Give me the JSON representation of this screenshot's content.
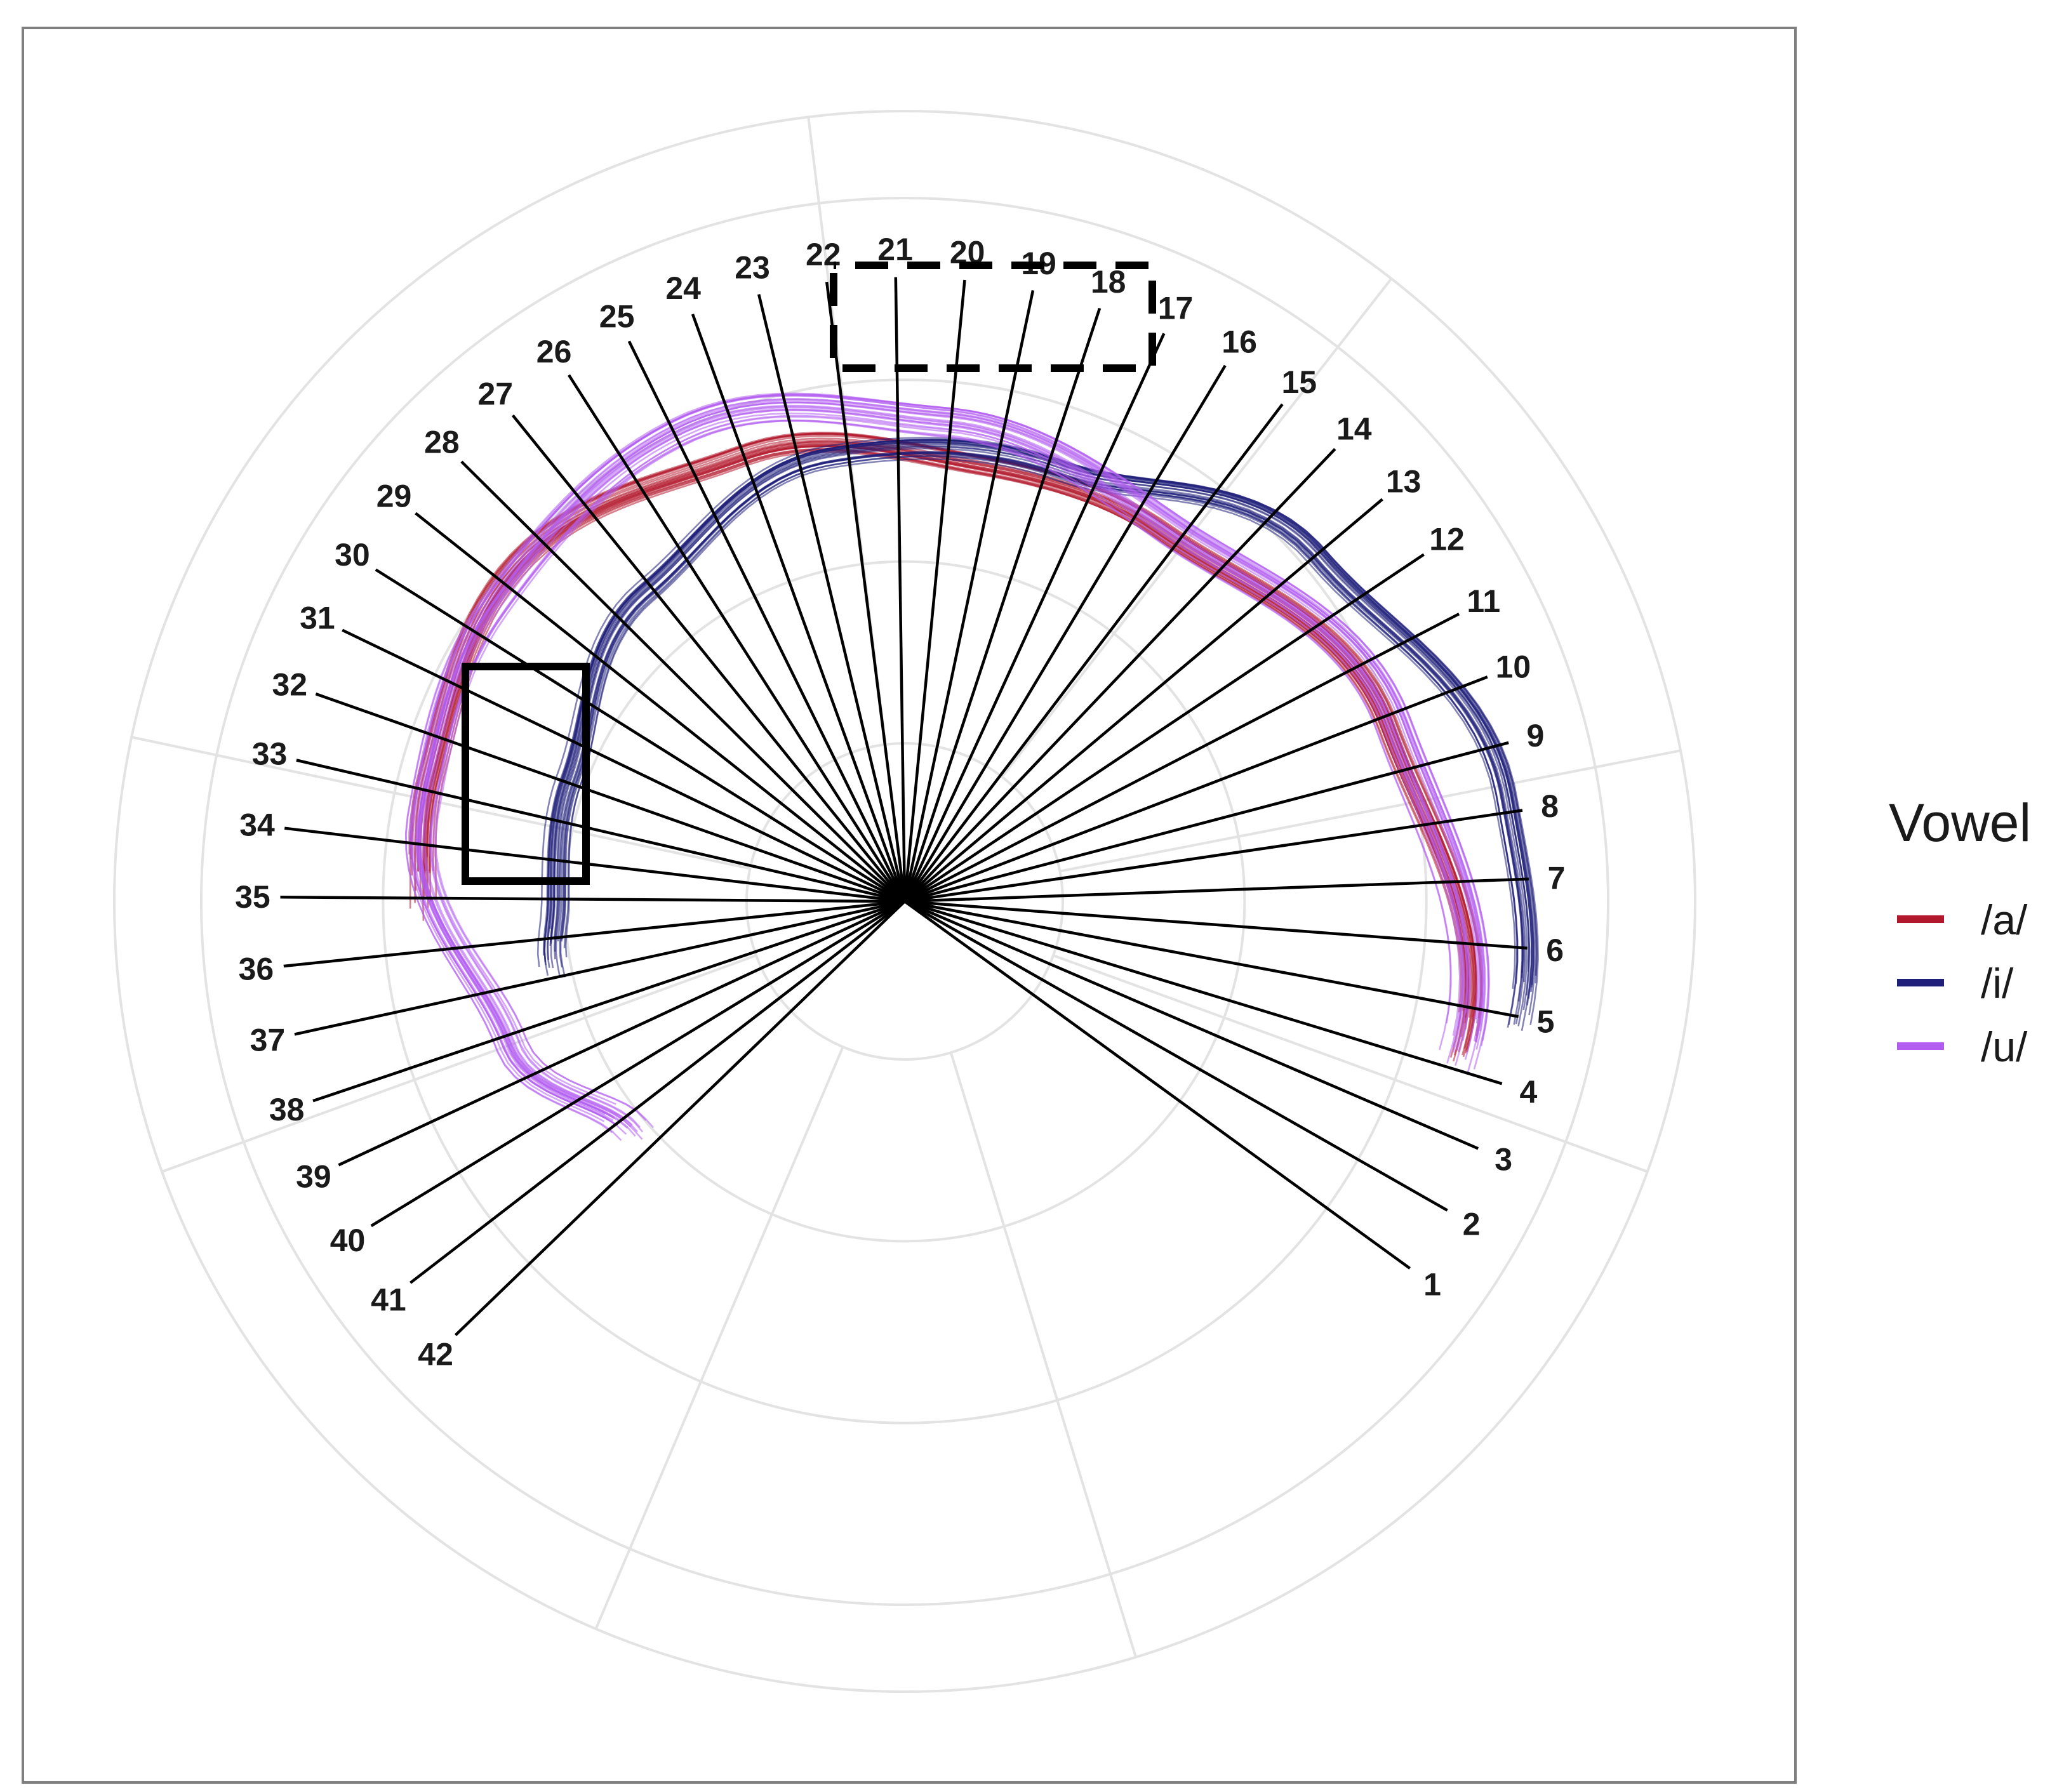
{
  "chart_data": {
    "type": "line",
    "coordinate_system": "polar",
    "description_units": "radial values normalized to outer grid ring = 1.0; theta in degrees (0 = right, counterclockwise)",
    "radial_lines": {
      "count": 42,
      "labels": [
        "1",
        "2",
        "3",
        "4",
        "5",
        "6",
        "7",
        "8",
        "9",
        "10",
        "11",
        "12",
        "13",
        "14",
        "15",
        "16",
        "17",
        "18",
        "19",
        "20",
        "21",
        "22",
        "23",
        "24",
        "25",
        "26",
        "27",
        "28",
        "29",
        "30",
        "31",
        "32",
        "33",
        "34",
        "35",
        "36",
        "37",
        "38",
        "39",
        "40",
        "41",
        "42"
      ],
      "theta_start_deg": -36,
      "theta_end_deg": 224,
      "length": 0.79
    },
    "grid": {
      "rings": [
        0.2,
        0.43,
        0.66,
        0.89,
        1.0
      ],
      "spoke_angles_deg": [
        -20,
        11,
        52,
        97,
        168,
        200,
        247,
        287
      ]
    },
    "legend": {
      "title": "Vowel",
      "position": "right",
      "entries": [
        {
          "label": "/a/",
          "color": "#b2182b"
        },
        {
          "label": "/i/",
          "color": "#1f1f7a"
        },
        {
          "label": "/u/",
          "color": "#b35cf0"
        }
      ]
    },
    "series": [
      {
        "name": "/a/",
        "color": "#b2182b",
        "tokens": 24,
        "spread": 0.012,
        "mean_contour": [
          {
            "theta": -14,
            "r": 0.73
          },
          {
            "theta": 20,
            "r": 0.65
          },
          {
            "theta": 55,
            "r": 0.57
          },
          {
            "theta": 80,
            "r": 0.56
          },
          {
            "theta": 110,
            "r": 0.6
          },
          {
            "theta": 140,
            "r": 0.65
          },
          {
            "theta": 165,
            "r": 0.62
          },
          {
            "theta": 180,
            "r": 0.61
          }
        ]
      },
      {
        "name": "/i/",
        "color": "#1f1f7a",
        "tokens": 24,
        "spread": 0.014,
        "mean_contour": [
          {
            "theta": -9,
            "r": 0.79
          },
          {
            "theta": 10,
            "r": 0.77
          },
          {
            "theta": 40,
            "r": 0.68
          },
          {
            "theta": 70,
            "r": 0.58
          },
          {
            "theta": 100,
            "r": 0.57
          },
          {
            "theta": 130,
            "r": 0.51
          },
          {
            "theta": 160,
            "r": 0.45
          },
          {
            "theta": 180,
            "r": 0.44
          },
          {
            "theta": 190,
            "r": 0.45
          }
        ]
      },
      {
        "name": "/u/",
        "color": "#b35cf0",
        "tokens": 24,
        "spread": 0.02,
        "mean_contour": [
          {
            "theta": -14,
            "r": 0.73
          },
          {
            "theta": 20,
            "r": 0.66
          },
          {
            "theta": 55,
            "r": 0.58
          },
          {
            "theta": 85,
            "r": 0.61
          },
          {
            "theta": 115,
            "r": 0.66
          },
          {
            "theta": 145,
            "r": 0.64
          },
          {
            "theta": 170,
            "r": 0.62
          },
          {
            "theta": 200,
            "r": 0.53
          },
          {
            "theta": 220,
            "r": 0.45
          }
        ]
      }
    ],
    "annotations": [
      {
        "kind": "solid-rectangle",
        "region": "radial lines 31–34, anterior tongue contour"
      },
      {
        "kind": "dashed-rectangle",
        "region": "radial lines 17–21, tongue dorsum peak"
      }
    ]
  }
}
